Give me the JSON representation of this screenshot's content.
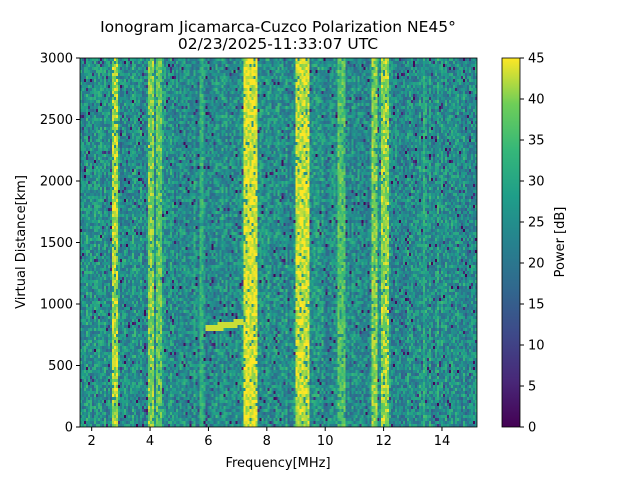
{
  "chart_data": {
    "type": "heatmap",
    "title": "Ionogram Jicamarca-Cuzco Polarization NE45°",
    "subtitle": "02/23/2025-11:33:07 UTC",
    "xlabel": "Frequency[MHz]",
    "ylabel": "Virtual Distance[km]",
    "xlim": [
      1.6,
      15.2
    ],
    "ylim": [
      0,
      3000
    ],
    "xticks": [
      2,
      4,
      6,
      8,
      10,
      12,
      14
    ],
    "yticks": [
      0,
      500,
      1000,
      1500,
      2000,
      2500,
      3000
    ],
    "colorbar": {
      "label": "Power [dB]",
      "range": [
        0,
        45
      ],
      "ticks": [
        0,
        5,
        10,
        15,
        20,
        25,
        30,
        35,
        40,
        45
      ],
      "colormap": "viridis"
    },
    "background_power_db": 25,
    "interference_bands": [
      {
        "f_start": 2.72,
        "f_end": 2.93,
        "power_db": 42
      },
      {
        "f_start": 3.95,
        "f_end": 4.1,
        "power_db": 40
      },
      {
        "f_start": 4.2,
        "f_end": 4.4,
        "power_db": 38
      },
      {
        "f_start": 5.7,
        "f_end": 5.85,
        "power_db": 33
      },
      {
        "f_start": 7.2,
        "f_end": 7.7,
        "power_db": 44
      },
      {
        "f_start": 9.0,
        "f_end": 9.45,
        "power_db": 43
      },
      {
        "f_start": 10.45,
        "f_end": 10.7,
        "power_db": 37
      },
      {
        "f_start": 11.6,
        "f_end": 11.8,
        "power_db": 40
      },
      {
        "f_start": 11.95,
        "f_end": 12.2,
        "power_db": 41
      },
      {
        "f_start": 13.35,
        "f_end": 13.45,
        "power_db": 32
      }
    ],
    "echo_trace": [
      {
        "f": 5.9,
        "d": 800
      },
      {
        "f": 6.5,
        "d": 820
      },
      {
        "f": 7.2,
        "d": 855
      }
    ]
  }
}
